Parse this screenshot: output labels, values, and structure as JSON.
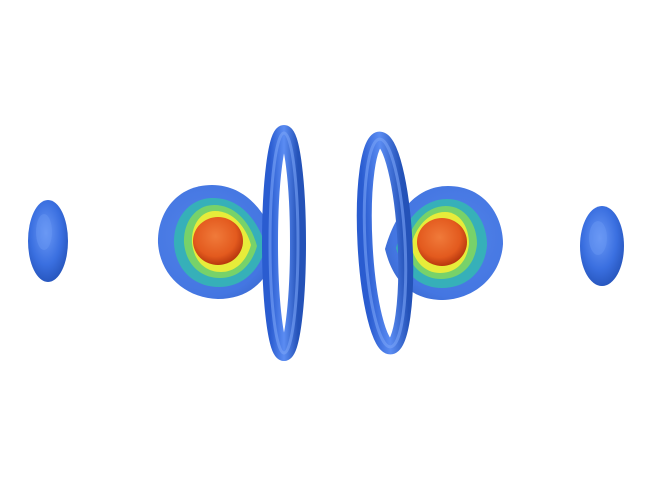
{
  "scene": {
    "background": "#ffffff",
    "palette": {
      "outer_shell": "#3a6fe0",
      "outer_shell_light": "#5b8cf2",
      "outer_shell_dark": "#2452b8",
      "teal_layer": "#34b6b4",
      "green_layer": "#77d26a",
      "yellow_layer": "#e7ec3a",
      "orange_core": "#e35a1e",
      "orange_core_dark": "#b8380e"
    },
    "objects": [
      "left-outer-lens-blob",
      "left-lobe-isosurface",
      "left-ring-torus",
      "right-ring-torus",
      "right-lobe-isosurface",
      "right-outer-lens-blob"
    ]
  }
}
